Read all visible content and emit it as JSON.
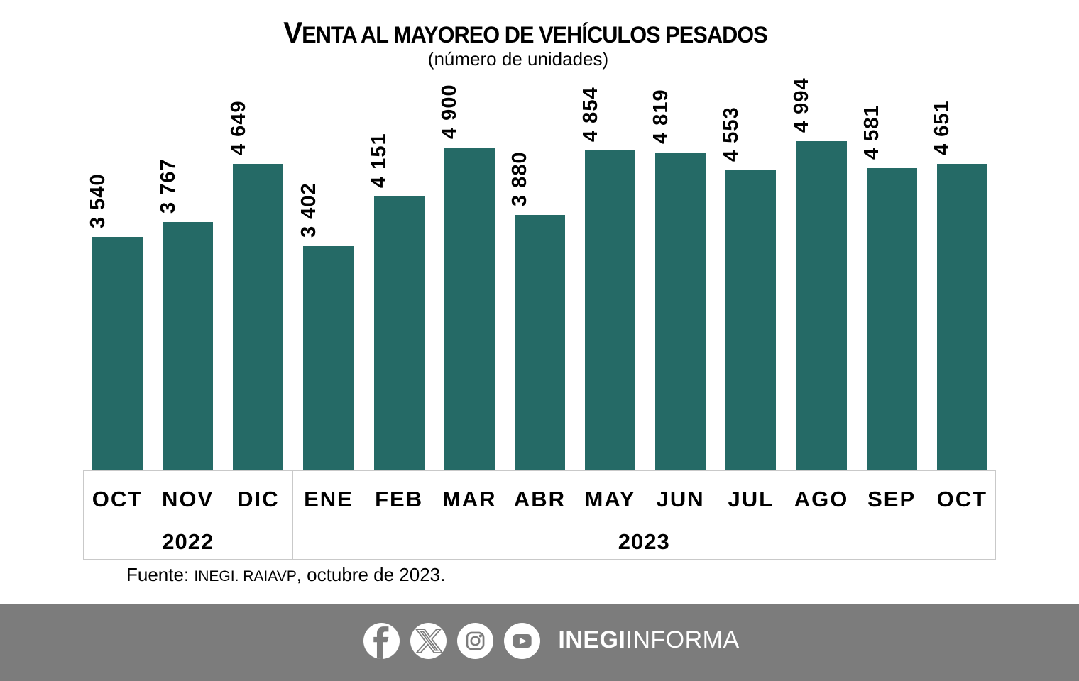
{
  "chart_data": {
    "type": "bar",
    "title": "VENTA AL MAYOREO DE VEHÍCULOS PESADOS",
    "subtitle": "(número de unidades)",
    "categories": [
      "OCT",
      "NOV",
      "DIC",
      "ENE",
      "FEB",
      "MAR",
      "ABR",
      "MAY",
      "JUN",
      "JUL",
      "AGO",
      "SEP",
      "OCT"
    ],
    "values": [
      3540,
      3767,
      4649,
      3402,
      4151,
      4900,
      3880,
      4854,
      4819,
      4553,
      4994,
      4581,
      4651
    ],
    "value_labels": [
      "3 540",
      "3 767",
      "4 649",
      "3 402",
      "4 151",
      "4 900",
      "3 880",
      "4 854",
      "4 819",
      "4 553",
      "4 994",
      "4 581",
      "4 651"
    ],
    "year_groups": [
      {
        "label": "2022",
        "months": [
          "OCT",
          "NOV",
          "DIC"
        ]
      },
      {
        "label": "2023",
        "months": [
          "ENE",
          "FEB",
          "MAR",
          "ABR",
          "MAY",
          "JUN",
          "JUL",
          "AGO",
          "SEP",
          "OCT"
        ]
      }
    ],
    "xlabel": "",
    "ylabel": "",
    "ylim": [
      0,
      5200
    ],
    "grid": false,
    "legend": false,
    "value_label_rotation": 90,
    "bar_color": "#256a66",
    "axis_box_border_color": "#c9c9c9"
  },
  "source": {
    "prefix": "Fuente: ",
    "org": "INEGI. RAIAVP",
    "suffix": ", octubre de 2023."
  },
  "footer": {
    "background": "#7c7c7c",
    "icons": [
      "facebook-icon",
      "x-icon",
      "instagram-icon",
      "youtube-icon"
    ],
    "brand_bold": "INEGI",
    "brand_light": "INFORMA"
  }
}
